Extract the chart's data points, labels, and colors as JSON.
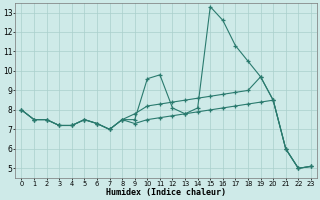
{
  "x": [
    0,
    1,
    2,
    3,
    4,
    5,
    6,
    7,
    8,
    9,
    10,
    11,
    12,
    13,
    14,
    15,
    16,
    17,
    18,
    19,
    20,
    21,
    22,
    23
  ],
  "line1": [
    8.0,
    7.5,
    7.5,
    7.2,
    7.2,
    7.5,
    7.3,
    7.0,
    7.5,
    7.5,
    9.6,
    9.8,
    8.1,
    7.8,
    8.1,
    13.3,
    12.6,
    11.3,
    10.5,
    9.7,
    8.5,
    6.0,
    5.0,
    5.1
  ],
  "line2": [
    8.0,
    7.5,
    7.5,
    7.2,
    7.2,
    7.5,
    7.3,
    7.0,
    7.5,
    7.8,
    8.2,
    8.3,
    8.4,
    8.5,
    8.6,
    8.7,
    8.8,
    8.9,
    9.0,
    9.7,
    8.5,
    6.0,
    5.0,
    5.1
  ],
  "line3": [
    8.0,
    7.5,
    7.5,
    7.2,
    7.2,
    7.5,
    7.3,
    7.0,
    7.5,
    7.3,
    7.5,
    7.6,
    7.7,
    7.8,
    7.9,
    8.0,
    8.1,
    8.2,
    8.3,
    8.4,
    8.5,
    6.0,
    5.0,
    5.1
  ],
  "line_color": "#2a7a6e",
  "bg_color": "#ceeae8",
  "grid_color": "#aacfcc",
  "xlabel": "Humidex (Indice chaleur)",
  "ylim": [
    4.5,
    13.5
  ],
  "xlim": [
    -0.5,
    23.5
  ],
  "yticks": [
    5,
    6,
    7,
    8,
    9,
    10,
    11,
    12,
    13
  ],
  "xticks": [
    0,
    1,
    2,
    3,
    4,
    5,
    6,
    7,
    8,
    9,
    10,
    11,
    12,
    13,
    14,
    15,
    16,
    17,
    18,
    19,
    20,
    21,
    22,
    23
  ],
  "figsize": [
    3.2,
    2.0
  ],
  "dpi": 100
}
